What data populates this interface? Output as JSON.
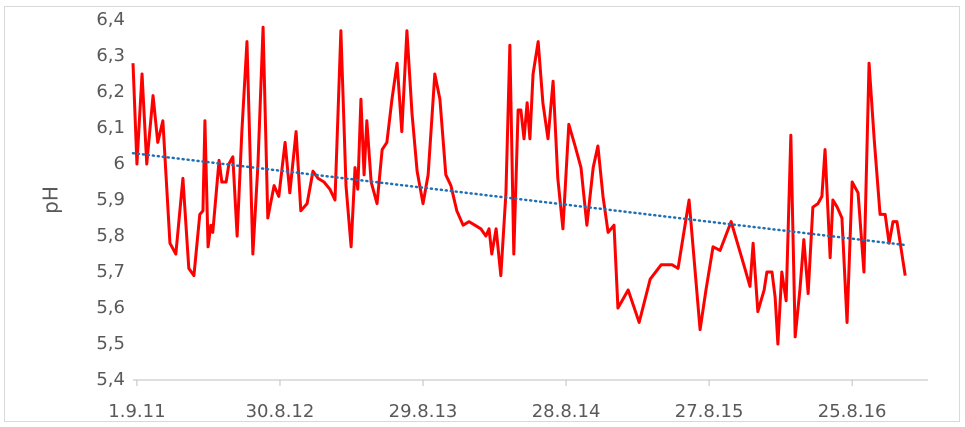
{
  "chart_data": {
    "type": "line",
    "y_label": "pH",
    "xlim": [
      40777,
      42800
    ],
    "xticks": [
      {
        "value": 40787,
        "label": "1.9.11"
      },
      {
        "value": 41151,
        "label": "30.8.12"
      },
      {
        "value": 41515,
        "label": "29.8.13"
      },
      {
        "value": 41879,
        "label": "28.8.14"
      },
      {
        "value": 42243,
        "label": "27.8.15"
      },
      {
        "value": 42607,
        "label": "25.8.16"
      }
    ],
    "ylim": [
      5.4,
      6.4
    ],
    "yticks": [
      {
        "value": 5.4,
        "label": "5,4"
      },
      {
        "value": 5.5,
        "label": "5,5"
      },
      {
        "value": 5.6,
        "label": "5,6"
      },
      {
        "value": 5.7,
        "label": "5,7"
      },
      {
        "value": 5.8,
        "label": "5,8"
      },
      {
        "value": 5.9,
        "label": "5,9"
      },
      6,
      {
        "value": 6.1,
        "label": "6,1"
      },
      {
        "value": 6.2,
        "label": "6,2"
      },
      {
        "value": 6.3,
        "label": "6,3"
      },
      {
        "value": 6.4,
        "label": "6,4"
      }
    ],
    "series": [
      {
        "color": "#ff0000",
        "x": [
          40777,
          40787,
          40800,
          40812,
          40828,
          40840,
          40853,
          40871,
          40886,
          40904,
          40919,
          40932,
          40947,
          40955,
          40960,
          40968,
          40975,
          40980,
          40996,
          41003,
          41014,
          41021,
          41031,
          41042,
          41054,
          41067,
          41082,
          41095,
          41108,
          41120,
          41136,
          41148,
          41164,
          41176,
          41192,
          41204,
          41220,
          41235,
          41248,
          41263,
          41278,
          41291,
          41306,
          41319,
          41332,
          41342,
          41349,
          41357,
          41365,
          41372,
          41383,
          41398,
          41411,
          41423,
          41436,
          41449,
          41461,
          41474,
          41487,
          41500,
          41515,
          41528,
          41545,
          41558,
          41573,
          41586,
          41601,
          41617,
          41632,
          41647,
          41662,
          41675,
          41683,
          41690,
          41701,
          41713,
          41726,
          41736,
          41746,
          41757,
          41764,
          41772,
          41780,
          41787,
          41795,
          41808,
          41820,
          41833,
          41846,
          41858,
          41871,
          41886,
          41902,
          41917,
          41932,
          41948,
          41960,
          41973,
          41986,
          42001,
          42011,
          42037,
          42065,
          42093,
          42121,
          42149,
          42164,
          42192,
          42220,
          42235,
          42253,
          42271,
          42299,
          42334,
          42347,
          42355,
          42367,
          42383,
          42390,
          42403,
          42411,
          42418,
          42428,
          42439,
          42451,
          42462,
          42474,
          42484,
          42495,
          42507,
          42520,
          42530,
          42538,
          42551,
          42558,
          42569,
          42581,
          42594,
          42607,
          42622,
          42637,
          42650,
          42663,
          42678,
          42691,
          42701,
          42711,
          42721,
          42742
        ],
        "values": [
          6.28,
          6.0,
          6.25,
          6.0,
          6.19,
          6.06,
          6.12,
          5.78,
          5.75,
          5.96,
          5.71,
          5.69,
          5.86,
          5.87,
          6.12,
          5.77,
          5.83,
          5.81,
          6.01,
          5.95,
          5.95,
          6.0,
          6.02,
          5.8,
          6.09,
          6.34,
          5.75,
          6.0,
          6.38,
          5.85,
          5.94,
          5.91,
          6.06,
          5.92,
          6.09,
          5.87,
          5.89,
          5.98,
          5.96,
          5.95,
          5.93,
          5.9,
          6.37,
          5.94,
          5.77,
          5.99,
          5.93,
          6.18,
          5.97,
          6.12,
          5.95,
          5.89,
          6.04,
          6.06,
          6.18,
          6.28,
          6.09,
          6.37,
          6.14,
          5.98,
          5.89,
          5.97,
          6.25,
          6.18,
          5.97,
          5.94,
          5.87,
          5.83,
          5.84,
          5.83,
          5.82,
          5.8,
          5.82,
          5.75,
          5.82,
          5.69,
          5.92,
          6.33,
          5.75,
          6.15,
          6.15,
          6.07,
          6.17,
          6.07,
          6.25,
          6.34,
          6.17,
          6.07,
          6.23,
          5.96,
          5.82,
          6.11,
          6.05,
          5.99,
          5.83,
          5.99,
          6.05,
          5.91,
          5.81,
          5.83,
          5.6,
          5.65,
          5.56,
          5.68,
          5.72,
          5.72,
          5.71,
          5.9,
          5.54,
          5.65,
          5.77,
          5.76,
          5.84,
          5.71,
          5.66,
          5.78,
          5.59,
          5.65,
          5.7,
          5.7,
          5.63,
          5.5,
          5.7,
          5.62,
          6.08,
          5.52,
          5.65,
          5.79,
          5.64,
          5.88,
          5.89,
          5.91,
          6.04,
          5.74,
          5.9,
          5.88,
          5.85,
          5.56,
          5.95,
          5.92,
          5.7,
          6.28,
          6.07,
          5.86,
          5.86,
          5.78,
          5.84,
          5.84,
          5.69
        ]
      }
    ],
    "trendline": {
      "color": "#1f6fb4",
      "x": [
        40777,
        42742
      ],
      "values": [
        6.03,
        5.775
      ]
    }
  }
}
